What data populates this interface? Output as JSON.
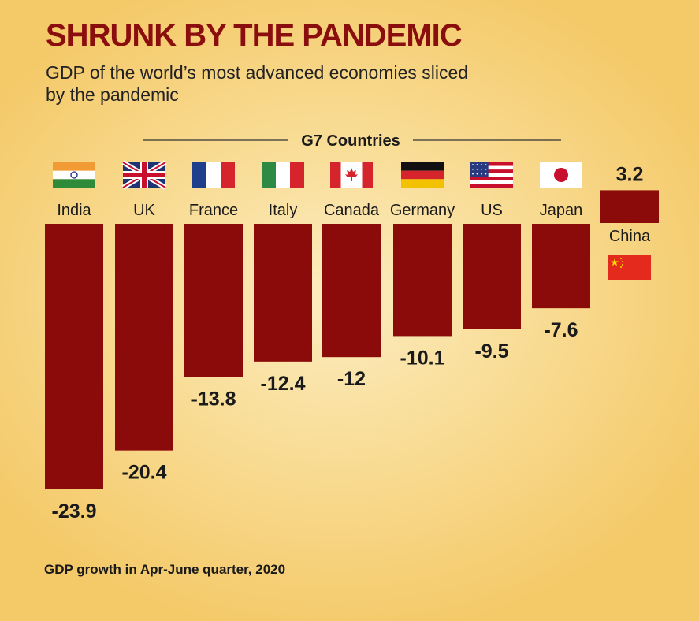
{
  "title": "SHRUNK BY THE PANDEMIC",
  "subtitle_lines": [
    "GDP of the world’s most advanced economies sliced",
    "by the pandemic"
  ],
  "group_label": "G7 Countries",
  "footnote": "GDP growth in Apr-June quarter, 2020",
  "colors": {
    "bar": "#8b0a0a",
    "title": "#8b0e0e",
    "text": "#1a1a1a"
  },
  "chart_data": {
    "type": "bar",
    "title": "SHRUNK BY THE PANDEMIC",
    "xlabel": "",
    "ylabel": "",
    "categories": [
      "India",
      "UK",
      "France",
      "Italy",
      "Canada",
      "Germany",
      "US",
      "Japan",
      "China"
    ],
    "values": [
      -23.9,
      -20.4,
      -13.8,
      -12.4,
      -12,
      -10.1,
      -9.5,
      -7.6,
      3.2
    ],
    "value_labels": [
      "-23.9",
      "-20.4",
      "-13.8",
      "-12.4",
      "-12",
      "-10.1",
      "-9.5",
      "-7.6",
      "3.2"
    ],
    "flags": [
      "india-flag",
      "uk-flag",
      "france-flag",
      "italy-flag",
      "canada-flag",
      "germany-flag",
      "us-flag",
      "japan-flag",
      "china-flag"
    ],
    "group": {
      "label": "G7 Countries",
      "members": [
        "UK",
        "France",
        "Italy",
        "Canada",
        "Germany",
        "US",
        "Japan"
      ]
    },
    "ylim": [
      -23.9,
      3.2
    ],
    "grid": false,
    "legend": "none"
  }
}
